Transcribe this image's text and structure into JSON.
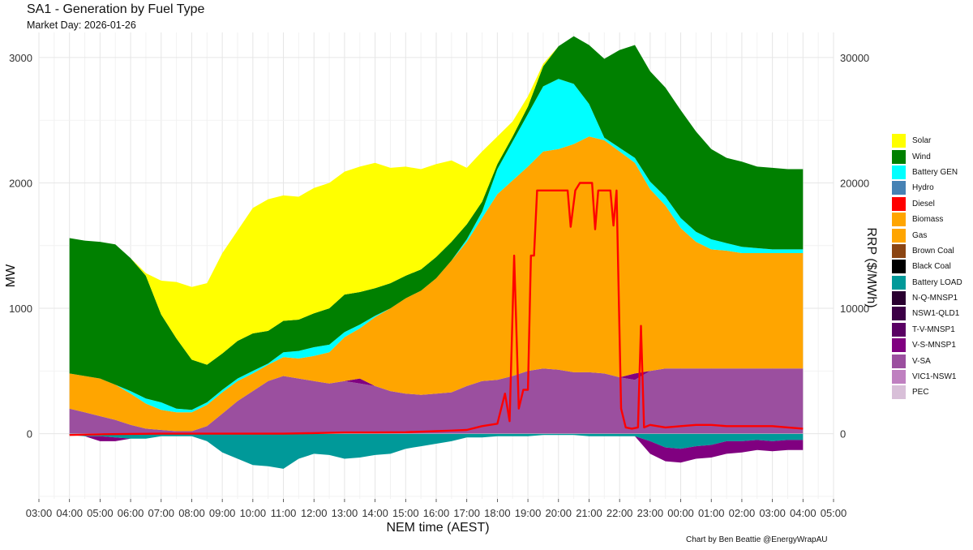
{
  "title": "SA1 - Generation by Fuel Type",
  "subtitle": "Market Day: 2026-01-26",
  "caption": "Chart by Ben Beattie @EnergyWrapAU",
  "chart_data": {
    "type": "area",
    "x_axis": {
      "label": "NEM time (AEST)",
      "ticks": [
        "03:00",
        "04:00",
        "05:00",
        "06:00",
        "07:00",
        "08:00",
        "09:00",
        "10:00",
        "11:00",
        "12:00",
        "13:00",
        "14:00",
        "15:00",
        "16:00",
        "17:00",
        "18:00",
        "19:00",
        "20:00",
        "21:00",
        "22:00",
        "23:00",
        "00:00",
        "01:00",
        "02:00",
        "03:00",
        "04:00",
        "05:00"
      ],
      "range_hours": [
        3,
        29
      ]
    },
    "y_axis_left": {
      "label": "MW",
      "ticks": [
        0,
        1000,
        2000,
        3000
      ],
      "range": [
        -520,
        3200
      ]
    },
    "y_axis_right": {
      "label": "RRP ($/MWh)",
      "ticks": [
        0,
        10000,
        20000,
        30000
      ],
      "range": [
        -5200,
        32000
      ]
    },
    "grid": true,
    "legend_position": "right",
    "legend": [
      {
        "name": "Solar",
        "color": "#FFFF00"
      },
      {
        "name": "Wind",
        "color": "#008000"
      },
      {
        "name": "Battery GEN",
        "color": "#00FFFF"
      },
      {
        "name": "Hydro",
        "color": "#4682B4"
      },
      {
        "name": "Diesel",
        "color": "#FF0000"
      },
      {
        "name": "Biomass",
        "color": "#FFA500"
      },
      {
        "name": "Gas",
        "color": "#FFA500"
      },
      {
        "name": "Brown Coal",
        "color": "#8B4513"
      },
      {
        "name": "Black Coal",
        "color": "#000000"
      },
      {
        "name": "Battery LOAD",
        "color": "#009999"
      },
      {
        "name": "N-Q-MNSP1",
        "color": "#2A0030"
      },
      {
        "name": "NSW1-QLD1",
        "color": "#3C0046"
      },
      {
        "name": "T-V-MNSP1",
        "color": "#5A0064"
      },
      {
        "name": "V-S-MNSP1",
        "color": "#800080"
      },
      {
        "name": "V-SA",
        "color": "#9B4F9F"
      },
      {
        "name": "VIC1-NSW1",
        "color": "#BF80C0"
      },
      {
        "name": "PEC",
        "color": "#D8BFD8"
      }
    ],
    "x": [
      4,
      4.5,
      5,
      5.5,
      6,
      6.5,
      7,
      7.5,
      8,
      8.5,
      9,
      9.5,
      10,
      10.5,
      11,
      11.5,
      12,
      12.5,
      13,
      13.5,
      14,
      14.5,
      15,
      15.5,
      16,
      16.5,
      17,
      17.5,
      18,
      18.5,
      19,
      19.5,
      20,
      20.5,
      21,
      21.5,
      22,
      22.5,
      23,
      23.5,
      24,
      24.5,
      25,
      25.5,
      26,
      26.5,
      27,
      27.5,
      28
    ],
    "stacked_positive": [
      {
        "name": "V-SA",
        "values": [
          200,
          170,
          140,
          110,
          70,
          40,
          30,
          20,
          20,
          60,
          160,
          260,
          340,
          420,
          460,
          440,
          420,
          400,
          420,
          400,
          380,
          340,
          320,
          310,
          320,
          330,
          380,
          420,
          430,
          460,
          500,
          520,
          510,
          490,
          490,
          480,
          450,
          430,
          500,
          520,
          520,
          520,
          520,
          520,
          520,
          520,
          520,
          520,
          520
        ]
      },
      {
        "name": "V-S-MNSP1",
        "values": [
          0,
          0,
          0,
          0,
          0,
          0,
          0,
          0,
          0,
          0,
          0,
          0,
          0,
          0,
          0,
          0,
          0,
          0,
          0,
          40,
          0,
          0,
          0,
          0,
          0,
          0,
          0,
          0,
          0,
          0,
          0,
          0,
          0,
          0,
          0,
          0,
          0,
          50,
          0,
          0,
          0,
          0,
          0,
          0,
          0,
          0,
          0,
          0,
          0
        ]
      },
      {
        "name": "Gas",
        "values": [
          280,
          290,
          300,
          280,
          250,
          200,
          160,
          150,
          150,
          170,
          170,
          160,
          140,
          130,
          150,
          160,
          200,
          250,
          350,
          400,
          550,
          660,
          760,
          830,
          920,
          1050,
          1150,
          1300,
          1480,
          1560,
          1630,
          1730,
          1760,
          1820,
          1880,
          1860,
          1800,
          1680,
          1450,
          1300,
          1120,
          1010,
          950,
          940,
          920,
          920,
          920,
          920,
          920
        ]
      },
      {
        "name": "Battery GEN",
        "values": [
          0,
          0,
          0,
          0,
          20,
          40,
          60,
          30,
          20,
          20,
          20,
          20,
          20,
          10,
          40,
          60,
          70,
          60,
          40,
          30,
          10,
          0,
          0,
          0,
          0,
          0,
          20,
          50,
          200,
          310,
          420,
          520,
          560,
          480,
          260,
          20,
          30,
          40,
          60,
          70,
          80,
          80,
          80,
          60,
          50,
          40,
          30,
          30,
          30
        ]
      },
      {
        "name": "Wind",
        "values": [
          1080,
          1080,
          1090,
          1120,
          1060,
          980,
          700,
          560,
          400,
          300,
          290,
          300,
          300,
          260,
          250,
          250,
          270,
          290,
          300,
          260,
          220,
          200,
          180,
          170,
          170,
          150,
          120,
          80,
          40,
          40,
          60,
          160,
          260,
          380,
          470,
          630,
          780,
          900,
          880,
          870,
          860,
          800,
          720,
          680,
          680,
          650,
          650,
          640,
          640
        ]
      },
      {
        "name": "Solar",
        "values": [
          0,
          0,
          0,
          0,
          0,
          20,
          270,
          450,
          580,
          650,
          800,
          880,
          1000,
          1050,
          1000,
          980,
          1000,
          1000,
          980,
          1000,
          1000,
          920,
          870,
          800,
          740,
          650,
          450,
          400,
          220,
          120,
          80,
          20,
          0,
          0,
          0,
          0,
          0,
          0,
          0,
          0,
          0,
          0,
          0,
          0,
          0,
          0,
          0,
          0,
          0
        ]
      }
    ],
    "stacked_negative": [
      {
        "name": "Battery LOAD",
        "values": [
          -10,
          -20,
          -20,
          -30,
          -40,
          -40,
          -20,
          -20,
          -20,
          -60,
          -150,
          -200,
          -250,
          -260,
          -280,
          -200,
          -160,
          -170,
          -200,
          -190,
          -170,
          -160,
          -120,
          -100,
          -80,
          -60,
          -30,
          -30,
          -20,
          -20,
          -20,
          -10,
          -10,
          -10,
          -20,
          -20,
          -20,
          -20,
          -60,
          -110,
          -120,
          -100,
          -90,
          -60,
          -60,
          -50,
          -60,
          -50,
          -50
        ]
      },
      {
        "name": "V-S-MNSP1",
        "values": [
          0,
          0,
          -40,
          -30,
          0,
          0,
          0,
          0,
          0,
          0,
          0,
          0,
          0,
          0,
          0,
          0,
          0,
          0,
          0,
          0,
          0,
          0,
          0,
          0,
          0,
          0,
          0,
          0,
          0,
          0,
          0,
          0,
          0,
          0,
          0,
          0,
          0,
          0,
          -100,
          -110,
          -110,
          -100,
          -100,
          -100,
          -90,
          -80,
          -80,
          -80,
          -80
        ]
      }
    ],
    "rrp_line": {
      "name": "RRP ($/MWh)",
      "color": "#FF0000",
      "axis": "right",
      "points": [
        [
          4,
          -100
        ],
        [
          5,
          -50
        ],
        [
          6,
          -20
        ],
        [
          7,
          0
        ],
        [
          8,
          0
        ],
        [
          9,
          0
        ],
        [
          10,
          0
        ],
        [
          11,
          0
        ],
        [
          12,
          50
        ],
        [
          13,
          100
        ],
        [
          14,
          100
        ],
        [
          15,
          120
        ],
        [
          16,
          200
        ],
        [
          16.5,
          250
        ],
        [
          17,
          300
        ],
        [
          17.5,
          600
        ],
        [
          18,
          800
        ],
        [
          18.25,
          3200
        ],
        [
          18.4,
          1000
        ],
        [
          18.55,
          14200
        ],
        [
          18.7,
          2000
        ],
        [
          18.85,
          3500
        ],
        [
          19.0,
          3500
        ],
        [
          19.1,
          14200
        ],
        [
          19.2,
          14200
        ],
        [
          19.3,
          19400
        ],
        [
          19.6,
          19400
        ],
        [
          20.0,
          19400
        ],
        [
          20.3,
          19400
        ],
        [
          20.4,
          16500
        ],
        [
          20.55,
          19400
        ],
        [
          20.7,
          20000
        ],
        [
          21.1,
          20000
        ],
        [
          21.2,
          16300
        ],
        [
          21.3,
          19400
        ],
        [
          21.7,
          19400
        ],
        [
          21.8,
          16600
        ],
        [
          21.9,
          19400
        ],
        [
          22.05,
          2000
        ],
        [
          22.2,
          500
        ],
        [
          22.4,
          400
        ],
        [
          22.6,
          500
        ],
        [
          22.7,
          8600
        ],
        [
          22.8,
          500
        ],
        [
          23,
          700
        ],
        [
          23.5,
          500
        ],
        [
          24,
          600
        ],
        [
          24.5,
          700
        ],
        [
          25,
          700
        ],
        [
          25.5,
          600
        ],
        [
          26,
          600
        ],
        [
          26.5,
          600
        ],
        [
          27,
          600
        ],
        [
          27.5,
          500
        ],
        [
          28,
          400
        ]
      ]
    }
  }
}
